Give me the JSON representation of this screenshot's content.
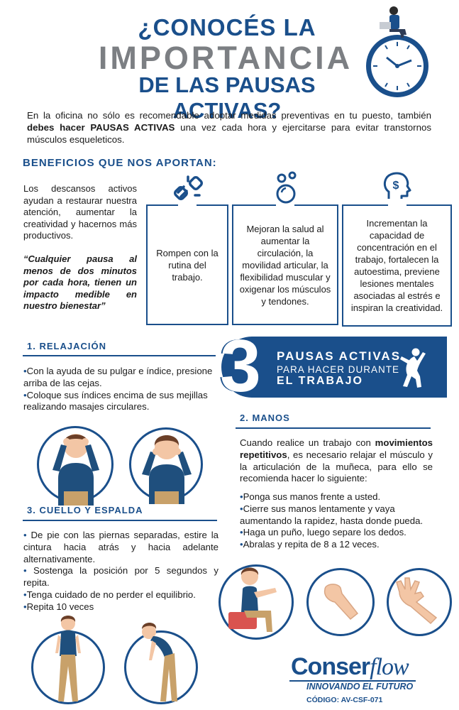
{
  "title": {
    "line1": "¿CONOCÉS LA",
    "line2": "IMPORTANCIA",
    "line3": "DE LAS PAUSAS ACTIVAS?"
  },
  "intro": {
    "part1": "En la oficina no sólo es recomendable adoptar medidas preventivas en tu puesto, también ",
    "bold": "debes hacer PAUSAS ACTIVAS",
    "part2": " una vez cada hora y ejercitarse para evitar transtornos músculos esqueleticos."
  },
  "benefits": {
    "title": "BENEFICIOS QUE NOS APORTAN:",
    "text": "Los descansos activos ayudan a restaurar nuestra atención, aumentar la creatividad y hacernos más productivos.",
    "quote": "“Cualquier pausa al menos de dos minutos por cada hora, tienen un impacto medible en nuestro bienestar”",
    "cards": [
      {
        "text": "Rompen con la rutina del trabajo.",
        "icon": "broken-chain-icon"
      },
      {
        "text": "Mejoran la salud al aumentar la circulación, la movilidad articular, la flexibilidad muscular y oxigenar los músculos y tendones.",
        "icon": "bubbles-icon"
      },
      {
        "text": "Incrementan la capacidad de concentración en el trabajo, fortalecen la autoestima, previene lesiones mentales asociadas al estrés e inspiran la creatividad.",
        "icon": "head-mind-icon"
      }
    ]
  },
  "banner": {
    "number": "3",
    "line1": "PAUSAS ACTIVAS",
    "line2": "PARA HACER DURANTE",
    "line3": "EL TRABAJO"
  },
  "relax": {
    "title": "1. RELAJACIÓN",
    "items": [
      "Con la ayuda de su pulgar e índice, presione arriba de las cejas.",
      "Coloque sus índices encima de sus mejillas realizando masajes circulares."
    ]
  },
  "hands": {
    "title": "2. MANOS",
    "intro_part1": "Cuando realice un trabajo con ",
    "intro_bold": "movimientos repetitivos",
    "intro_part2": ", es necesario relajar el músculo y la articulación de la muñeca, para ello se recomienda hacer lo siguiente:",
    "items": [
      "Ponga sus manos frente a usted.",
      "Cierre sus manos lentamente y vaya aumentando la rapidez, hasta donde pueda.",
      "Haga un puño, luego separe los dedos.",
      "Abralas y repita de 8 a 12 veces."
    ]
  },
  "neck": {
    "title": "3. CUELLO Y ESPALDA",
    "items": [
      "De pie con las piernas separadas, estire la cintura hacia atrás y hacia adelante alternativamente.",
      "Sostenga la posición por 5 segundos y repita.",
      "Tenga cuidado de no perder el equilibrio.",
      "Repita 10 veces"
    ]
  },
  "logo": {
    "brand1": "Conser",
    "brand2": "flow",
    "tagline": "INNOVANDO EL FUTURO",
    "code": "CÓDIGO: AV-CSF-071"
  },
  "colors": {
    "primary": "#1a4f8b",
    "gray": "#7c7f83",
    "skin": "#f3c6a5",
    "stool": "#d9534f"
  }
}
